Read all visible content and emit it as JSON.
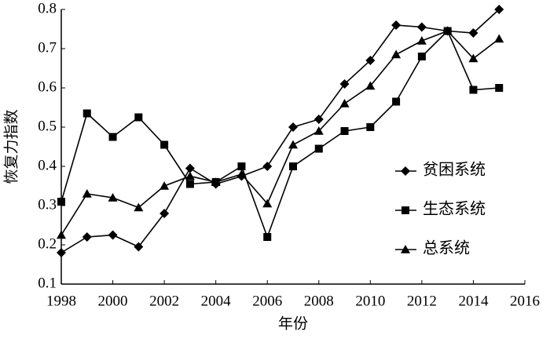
{
  "chart_data": {
    "type": "line",
    "x_label": "年份",
    "y_label": "恢复力指数",
    "x": [
      1998,
      1999,
      2000,
      2001,
      2002,
      2003,
      2004,
      2005,
      2006,
      2007,
      2008,
      2009,
      2010,
      2011,
      2012,
      2013,
      2014,
      2015
    ],
    "series": [
      {
        "name": "贫困系统",
        "color": "#000000",
        "marker": "diamond",
        "values": [
          0.18,
          0.22,
          0.225,
          0.195,
          0.28,
          0.395,
          0.355,
          0.375,
          0.4,
          0.5,
          0.52,
          0.61,
          0.67,
          0.76,
          0.755,
          0.745,
          0.74,
          0.8
        ]
      },
      {
        "name": "生态系统",
        "color": "#000000",
        "marker": "square",
        "values": [
          0.31,
          0.535,
          0.475,
          0.525,
          0.455,
          0.355,
          0.36,
          0.4,
          0.22,
          0.4,
          0.445,
          0.49,
          0.5,
          0.565,
          0.68,
          0.745,
          0.595,
          0.6
        ]
      },
      {
        "name": "总系统",
        "color": "#000000",
        "marker": "triangle",
        "values": [
          0.225,
          0.33,
          0.32,
          0.295,
          0.35,
          0.375,
          0.36,
          0.38,
          0.305,
          0.455,
          0.49,
          0.56,
          0.605,
          0.685,
          0.72,
          0.745,
          0.675,
          0.725
        ]
      }
    ],
    "xlim": [
      1998,
      2016
    ],
    "xticks": [
      1998,
      2000,
      2002,
      2004,
      2006,
      2008,
      2010,
      2012,
      2014,
      2016
    ],
    "ylim": [
      0.1,
      0.8
    ],
    "yticks": [
      0.1,
      0.2,
      0.3,
      0.4,
      0.5,
      0.6,
      0.7,
      0.8
    ],
    "grid": false,
    "legend": "right"
  }
}
